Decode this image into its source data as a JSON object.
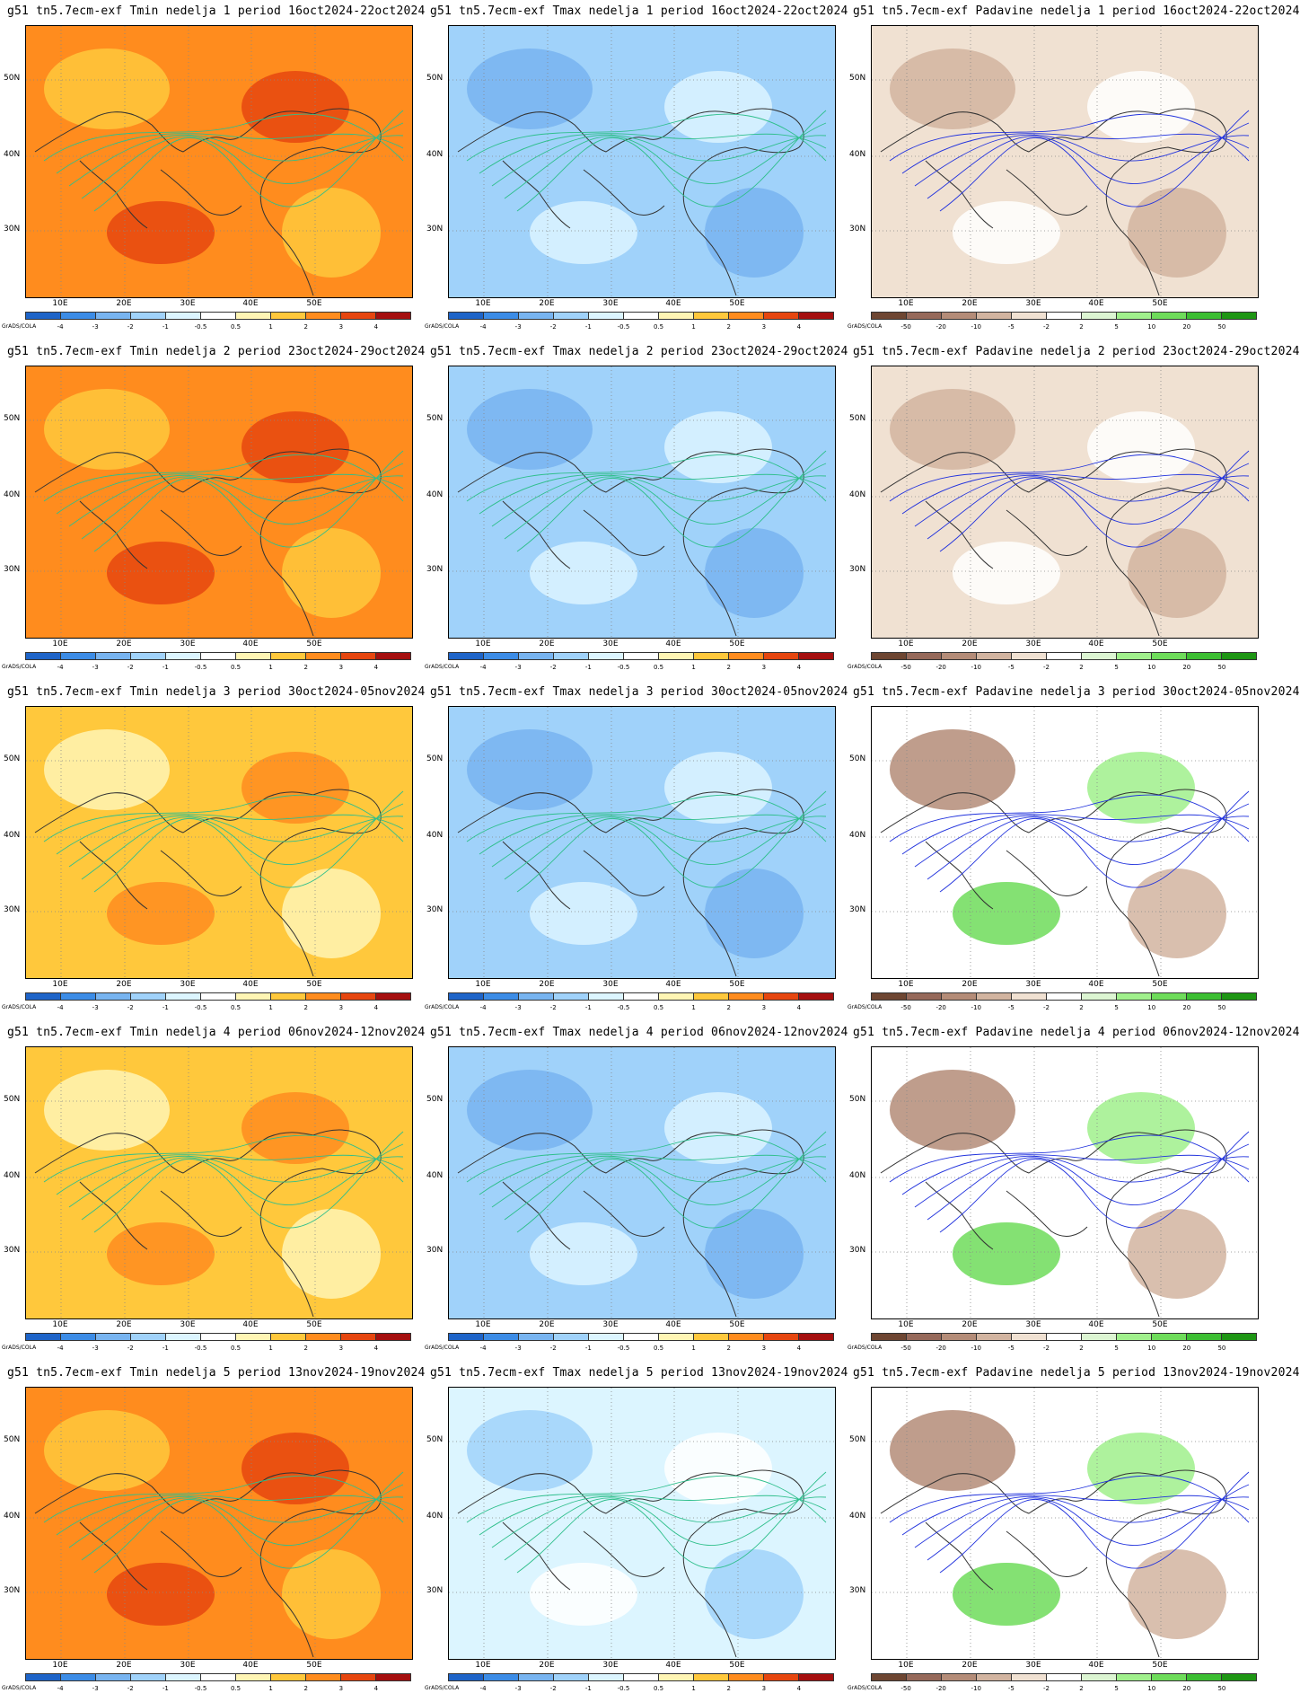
{
  "grads_label": "GrADS/COLA",
  "y_labels": [
    "50N",
    "40N",
    "30N"
  ],
  "x_labels": [
    "10E",
    "20E",
    "30E",
    "40E",
    "50E"
  ],
  "scales": {
    "temp": {
      "ticks": [
        "-4",
        "-3",
        "-2",
        "-1",
        "-0.5",
        "0.5",
        "1",
        "2",
        "3",
        "4"
      ],
      "colors": [
        "#1e64c8",
        "#3c8ce6",
        "#78b4f0",
        "#a0d2fa",
        "#dcf5ff",
        "#ffffff",
        "#fff5b4",
        "#ffc83c",
        "#ff8c1e",
        "#e6460f",
        "#a50f0f"
      ]
    },
    "precip": {
      "ticks": [
        "-50",
        "-20",
        "-10",
        "-5",
        "-2",
        "2",
        "5",
        "10",
        "20",
        "50"
      ],
      "colors": [
        "#6e4632",
        "#96695a",
        "#b48c78",
        "#d2b4a0",
        "#f0e1d2",
        "#ffffff",
        "#dcf5d2",
        "#a0f08c",
        "#6edc5a",
        "#3cbe32",
        "#1e9614"
      ]
    }
  },
  "panels": [
    {
      "title": "g51 tn5.7ecm-exf Tmin nedelja 1 period 16oct2024-22oct2024",
      "scale": "temp",
      "fill": "#ff8c1e"
    },
    {
      "title": "g51 tn5.7ecm-exf Tmax nedelja 1 period 16oct2024-22oct2024",
      "scale": "temp",
      "fill": "#a0d2fa"
    },
    {
      "title": "g51 tn5.7ecm-exf Padavine nedelja 1 period 16oct2024-22oct2024",
      "scale": "precip",
      "fill": "#f0e1d2"
    },
    {
      "title": "g51 tn5.7ecm-exf Tmin nedelja 2 period 23oct2024-29oct2024",
      "scale": "temp",
      "fill": "#ff8c1e"
    },
    {
      "title": "g51 tn5.7ecm-exf Tmax nedelja 2 period 23oct2024-29oct2024",
      "scale": "temp",
      "fill": "#a0d2fa"
    },
    {
      "title": "g51 tn5.7ecm-exf Padavine nedelja 2 period 23oct2024-29oct2024",
      "scale": "precip",
      "fill": "#f0e1d2"
    },
    {
      "title": "g51 tn5.7ecm-exf Tmin nedelja 3 period 30oct2024-05nov2024",
      "scale": "temp",
      "fill": "#ffc83c"
    },
    {
      "title": "g51 tn5.7ecm-exf Tmax nedelja 3 period 30oct2024-05nov2024",
      "scale": "temp",
      "fill": "#a0d2fa"
    },
    {
      "title": "g51 tn5.7ecm-exf Padavine nedelja 3 period 30oct2024-05nov2024",
      "scale": "precip",
      "fill": "#ffffff"
    },
    {
      "title": "g51 tn5.7ecm-exf Tmin nedelja 4 period 06nov2024-12nov2024",
      "scale": "temp",
      "fill": "#ffc83c"
    },
    {
      "title": "g51 tn5.7ecm-exf Tmax nedelja 4 period 06nov2024-12nov2024",
      "scale": "temp",
      "fill": "#a0d2fa"
    },
    {
      "title": "g51 tn5.7ecm-exf Padavine nedelja 4 period 06nov2024-12nov2024",
      "scale": "precip",
      "fill": "#ffffff"
    },
    {
      "title": "g51 tn5.7ecm-exf Tmin nedelja 5 period 13nov2024-19nov2024",
      "scale": "temp",
      "fill": "#ff8c1e"
    },
    {
      "title": "g51 tn5.7ecm-exf Tmax nedelja 5 period 13nov2024-19nov2024",
      "scale": "temp",
      "fill": "#dcf5ff"
    },
    {
      "title": "g51 tn5.7ecm-exf Padavine nedelja 5 period 13nov2024-19nov2024",
      "scale": "precip",
      "fill": "#ffffff"
    }
  ]
}
